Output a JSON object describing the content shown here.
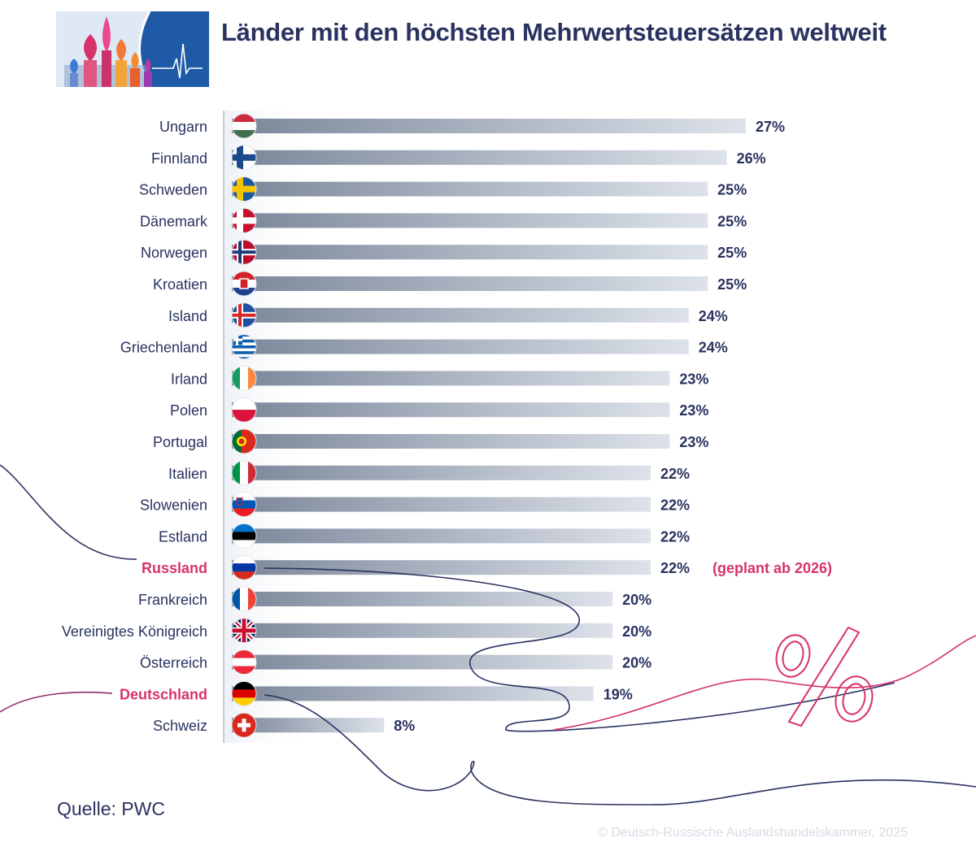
{
  "colors": {
    "title": "#2a3260",
    "label": "#2a3260",
    "highlight": "#d6336c",
    "bar_start": "#7a8699",
    "bar_end": "#dde2ea",
    "decor_line_dark": "#2a3260",
    "decor_line_pink": "#d6336c"
  },
  "chart_data": {
    "type": "bar",
    "orientation": "horizontal",
    "title": "Länder mit den höchsten Mehrwertsteuersätzen weltweit",
    "unit": "%",
    "xlim": [
      0,
      27
    ],
    "grid": false,
    "legend": "none",
    "categories": [
      "Ungarn",
      "Finnland",
      "Schweden",
      "Dänemark",
      "Norwegen",
      "Kroatien",
      "Island",
      "Griechenland",
      "Irland",
      "Polen",
      "Portugal",
      "Italien",
      "Slowenien",
      "Estland",
      "Russland",
      "Frankreich",
      "Vereinigtes Königreich",
      "Österreich",
      "Deutschland",
      "Schweiz"
    ],
    "values": [
      27,
      26,
      25,
      25,
      25,
      25,
      24,
      24,
      23,
      23,
      23,
      22,
      22,
      22,
      22,
      20,
      20,
      20,
      19,
      8
    ],
    "value_labels": [
      "27%",
      "26%",
      "25%",
      "25%",
      "25%",
      "25%",
      "24%",
      "24%",
      "23%",
      "23%",
      "23%",
      "22%",
      "22%",
      "22%",
      "22%",
      "20%",
      "20%",
      "20%",
      "19%",
      "8%"
    ],
    "highlighted": [
      "Russland",
      "Deutschland"
    ],
    "annotations": [
      {
        "category": "Russland",
        "text": "(geplant ab 2026)"
      }
    ],
    "flags": [
      "flag-hungary",
      "flag-finland",
      "flag-sweden",
      "flag-denmark",
      "flag-norway",
      "flag-croatia",
      "flag-iceland",
      "flag-greece",
      "flag-ireland",
      "flag-poland",
      "flag-portugal",
      "flag-italy",
      "flag-slovenia",
      "flag-estonia",
      "flag-russia",
      "flag-france",
      "flag-uk",
      "flag-austria",
      "flag-germany",
      "flag-switzerland"
    ]
  },
  "footer": {
    "source": "Quelle: PWC",
    "copyright": "© Deutsch-Russische Auslandshandelskammer, 2025"
  },
  "decor": {
    "logo_icon": "onion-domes-heartbeat-logo",
    "percent_icon": "percent-sign-icon"
  }
}
